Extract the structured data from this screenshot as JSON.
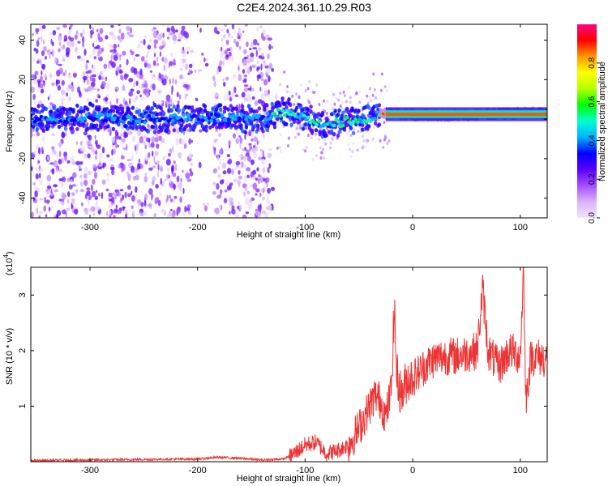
{
  "figure": {
    "title": "C2E4.2024.361.10.29.R03"
  },
  "chart_data": [
    {
      "type": "heatmap",
      "title": "C2E4.2024.361.10.29.R03",
      "xlabel": "Height of straight line (km)",
      "ylabel": "Frequency (Hz)",
      "xlim": [
        -355,
        125
      ],
      "ylim": [
        -50,
        48
      ],
      "x_ticks": [
        -300,
        -200,
        -100,
        0,
        100
      ],
      "y_ticks": [
        -40,
        -20,
        0,
        20,
        40
      ],
      "grid": false,
      "colorbar": {
        "label": "Normalized spectral amplitude",
        "range": [
          0,
          1
        ],
        "ticks": [
          "0.0",
          "0.2",
          "0.4",
          "0.6",
          "0.8"
        ],
        "colormap": [
          "#f2e6ff",
          "#d9b3ff",
          "#a64dff",
          "#5a00ff",
          "#0000ff",
          "#00b3ff",
          "#00ffd0",
          "#00ff00",
          "#b3ff00",
          "#ffff00",
          "#ff9900",
          "#ff0000",
          "#ff0080"
        ]
      },
      "ridge_center_hz": [
        {
          "x": -355,
          "y": 0
        },
        {
          "x": -300,
          "y": 1
        },
        {
          "x": -250,
          "y": 0
        },
        {
          "x": -200,
          "y": 1
        },
        {
          "x": -140,
          "y": 0
        },
        {
          "x": -120,
          "y": 4
        },
        {
          "x": -100,
          "y": 1
        },
        {
          "x": -80,
          "y": -3
        },
        {
          "x": -60,
          "y": -1
        },
        {
          "x": -40,
          "y": 1
        },
        {
          "x": -25,
          "y": 3
        },
        {
          "x": 0,
          "y": 2
        },
        {
          "x": 50,
          "y": 2
        },
        {
          "x": 100,
          "y": 3
        },
        {
          "x": 125,
          "y": 3
        }
      ]
    },
    {
      "type": "line",
      "xlabel": "Height of straight line (km)",
      "ylabel": "SNR (10 * v/v)",
      "y_scale_label": "(x10",
      "y_scale_exponent": "4",
      "xlim": [
        -355,
        125
      ],
      "ylim": [
        0,
        3.5
      ],
      "x_ticks": [
        -300,
        -200,
        -100,
        0,
        100
      ],
      "y_ticks": [
        1,
        2,
        3
      ],
      "grid": false,
      "color": "#ee3333",
      "series": [
        {
          "x": [
            -355,
            -300,
            -250,
            -200,
            -180,
            -160,
            -140,
            -120,
            -110,
            -100,
            -90,
            -80,
            -70,
            -60,
            -50,
            -40,
            -35,
            -30,
            -25,
            -20,
            -17,
            -15,
            -12,
            -10,
            -5,
            0,
            10,
            20,
            30,
            40,
            50,
            60,
            65,
            70,
            80,
            90,
            100,
            103,
            105,
            110,
            125
          ],
          "y": [
            0.02,
            0.03,
            0.04,
            0.05,
            0.08,
            0.06,
            0.03,
            0.05,
            0.15,
            0.3,
            0.35,
            0.15,
            0.2,
            0.3,
            0.6,
            1.0,
            1.2,
            1.1,
            0.8,
            1.3,
            2.8,
            1.6,
            1.3,
            1.2,
            1.5,
            1.5,
            1.7,
            1.85,
            1.9,
            1.9,
            1.95,
            2.0,
            3.1,
            2.0,
            1.7,
            2.0,
            1.9,
            3.5,
            1.1,
            1.9,
            1.85
          ]
        }
      ]
    }
  ]
}
